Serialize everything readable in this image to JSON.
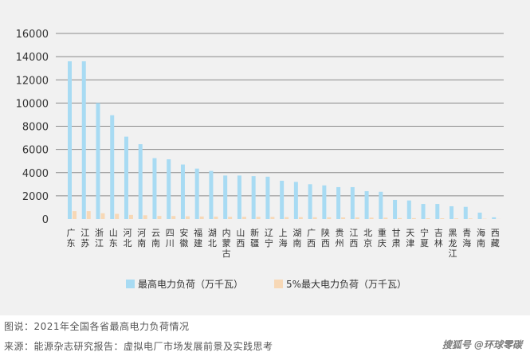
{
  "chart_data": {
    "type": "bar",
    "categories": [
      "广东",
      "江苏",
      "浙江",
      "山东",
      "河北",
      "河南",
      "云南",
      "四川",
      "安徽",
      "福建",
      "湖北",
      "内蒙古",
      "山西",
      "新疆",
      "辽宁",
      "上海",
      "湖南",
      "广西",
      "陕西",
      "贵州",
      "江西",
      "北京",
      "重庆",
      "甘肃",
      "天津",
      "宁夏",
      "吉林",
      "黑龙江",
      "青海",
      "海南",
      "西藏"
    ],
    "series": [
      {
        "name": "最高电力负荷（万千瓦）",
        "color": "#a8dbf3",
        "values": [
          13600,
          13600,
          10000,
          8950,
          7100,
          6450,
          5250,
          5150,
          4700,
          4350,
          4150,
          3750,
          3750,
          3700,
          3650,
          3300,
          3200,
          3000,
          2900,
          2750,
          2750,
          2400,
          2350,
          1650,
          1600,
          1300,
          1300,
          1100,
          1050,
          550,
          150
        ]
      },
      {
        "name": "5%最大电力负荷（万千瓦）",
        "color": "#f7d8b6",
        "values": [
          680,
          680,
          500,
          448,
          355,
          323,
          263,
          258,
          235,
          218,
          208,
          188,
          188,
          185,
          183,
          165,
          160,
          150,
          145,
          138,
          138,
          120,
          118,
          83,
          80,
          65,
          65,
          55,
          53,
          28,
          8
        ]
      }
    ],
    "ylim": [
      0,
      16000
    ],
    "yticks": [
      0,
      2000,
      4000,
      6000,
      8000,
      10000,
      12000,
      14000,
      16000
    ],
    "grid": true,
    "legend_position": "bottom"
  },
  "caption": "图说：2021年全国各省最高电力负荷情况",
  "source": "来源：能源杂志研究报告：虚拟电厂市场发展前景及实践思考",
  "watermark": "搜狐号 @环球零碳"
}
